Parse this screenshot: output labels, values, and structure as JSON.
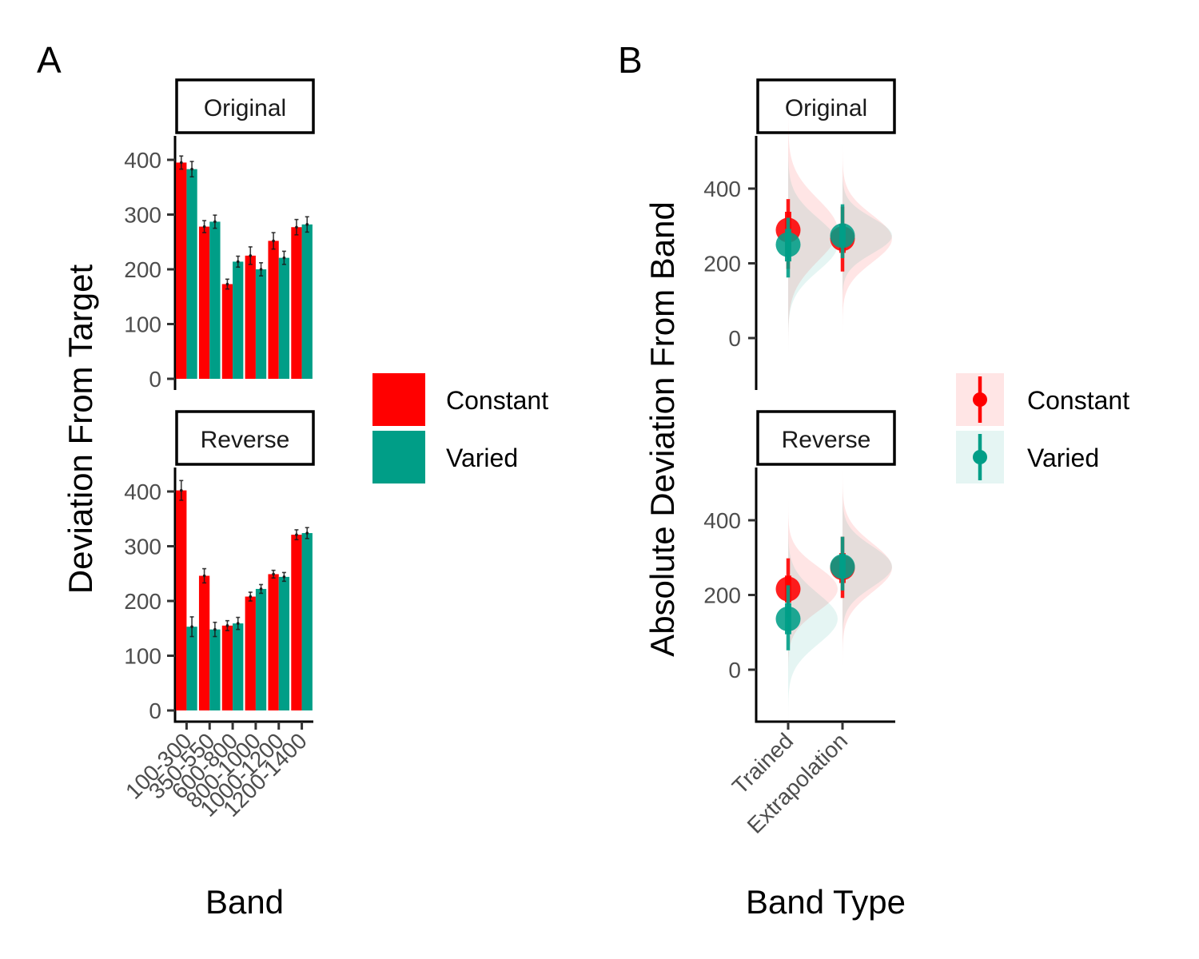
{
  "colors": {
    "Constant": "#ff0000",
    "Varied": "#009e87"
  },
  "chart_data": [
    {
      "panel_label": "A",
      "type": "bar",
      "xlabel": "Band",
      "ylabel": "Deviation From Target",
      "ylim": [
        0,
        440
      ],
      "yticks": [
        0,
        100,
        200,
        300,
        400
      ],
      "categories": [
        "100-300",
        "350-550",
        "600-800",
        "800-1000",
        "1000-1200",
        "1200-1400"
      ],
      "legend": {
        "position": "right",
        "entries": [
          "Constant",
          "Varied"
        ]
      },
      "facets": [
        {
          "label": "Original",
          "series": [
            {
              "name": "Constant",
              "values": [
                395,
                278,
                173,
                225,
                252,
                277
              ],
              "errors": [
                12,
                11,
                9,
                16,
                15,
                14
              ]
            },
            {
              "name": "Varied",
              "values": [
                383,
                287,
                214,
                200,
                221,
                282
              ],
              "errors": [
                14,
                12,
                10,
                12,
                12,
                14
              ]
            }
          ]
        },
        {
          "label": "Reverse",
          "series": [
            {
              "name": "Constant",
              "values": [
                402,
                246,
                155,
                208,
                249,
                321
              ],
              "errors": [
                18,
                13,
                9,
                8,
                7,
                9
              ]
            },
            {
              "name": "Varied",
              "values": [
                153,
                148,
                159,
                222,
                244,
                324
              ],
              "errors": [
                18,
                13,
                11,
                8,
                8,
                10
              ]
            }
          ]
        }
      ]
    },
    {
      "panel_label": "B",
      "type": "scatter",
      "xlabel": "Band Type",
      "ylabel": "Absolute Deviation From Band",
      "ylim": [
        -130,
        530
      ],
      "yticks": [
        0,
        200,
        400
      ],
      "categories": [
        "Trained",
        "Extrapolation"
      ],
      "legend": {
        "position": "right",
        "entries": [
          "Constant",
          "Varied"
        ]
      },
      "facets": [
        {
          "label": "Original",
          "series": [
            {
              "name": "Constant",
              "values": [
                289,
                266
              ],
              "inner": [
                [
                  235,
                  338
                ],
                [
                  228,
                  305
                ]
              ],
              "outer": [
                [
                  185,
                  372
                ],
                [
                  178,
                  352
                ]
              ]
            },
            {
              "name": "Varied",
              "values": [
                250,
                274
              ],
              "inner": [
                [
                  205,
                  292
                ],
                [
                  246,
                  302
                ]
              ],
              "outer": [
                [
                  162,
                  322
                ],
                [
                  214,
                  358
                ]
              ]
            }
          ]
        },
        {
          "label": "Reverse",
          "series": [
            {
              "name": "Constant",
              "values": [
                216,
                273
              ],
              "inner": [
                [
                  180,
                  252
                ],
                [
                  232,
                  312
                ]
              ],
              "outer": [
                [
                  140,
                  298
                ],
                [
                  192,
                  356
                ]
              ]
            },
            {
              "name": "Varied",
              "values": [
                136,
                276
              ],
              "inner": [
                [
                  95,
                  178
                ],
                [
                  245,
                  310
                ]
              ],
              "outer": [
                [
                  52,
                  226
                ],
                [
                  212,
                  356
                ]
              ]
            }
          ]
        }
      ]
    }
  ]
}
